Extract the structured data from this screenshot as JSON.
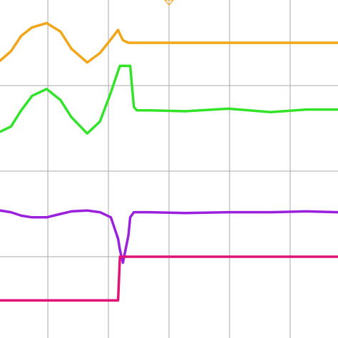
{
  "chart_data": {
    "type": "line",
    "grid": true,
    "x": [
      -2.79,
      -2.61,
      -2.44,
      -2.26,
      -2.02,
      -1.79,
      -1.61,
      -1.35,
      -1.14,
      -0.96,
      -0.84,
      -0.81,
      -0.76,
      -0.67,
      -0.64,
      -0.58,
      -0.53,
      -0.32,
      0.27,
      0.98,
      1.68,
      2.27,
      2.79
    ],
    "xlim": [
      -2.79,
      2.79
    ],
    "xticks": [
      -2,
      -1,
      0,
      1,
      2
    ],
    "ylim": [
      -1.95,
      2
    ],
    "yticks": [
      -1,
      0,
      1
    ],
    "series": [
      {
        "color": "#f2a516",
        "values": [
          1.29,
          1.4,
          1.58,
          1.68,
          1.73,
          1.63,
          1.43,
          1.27,
          1.38,
          1.54,
          1.65,
          1.6,
          1.53,
          1.5,
          1.5,
          1.5,
          1.5,
          1.5,
          1.5,
          1.5,
          1.5,
          1.5,
          1.5
        ]
      },
      {
        "color": "#33e32a",
        "values": [
          0.46,
          0.52,
          0.71,
          0.88,
          0.96,
          0.83,
          0.63,
          0.44,
          0.58,
          0.92,
          1.17,
          1.23,
          1.23,
          1.23,
          1.23,
          0.75,
          0.71,
          0.71,
          0.7,
          0.73,
          0.69,
          0.72,
          0.72
        ]
      },
      {
        "color": "#9b20dd",
        "values": [
          -0.46,
          -0.48,
          -0.52,
          -0.54,
          -0.54,
          -0.5,
          -0.47,
          -0.46,
          -0.48,
          -0.54,
          -0.79,
          -0.92,
          -1.07,
          -0.75,
          -0.54,
          -0.48,
          -0.48,
          -0.48,
          -0.49,
          -0.48,
          -0.48,
          -0.47,
          -0.48
        ]
      },
      {
        "color": "#e01478",
        "values": [
          -1.51,
          -1.51,
          -1.51,
          -1.51,
          -1.51,
          -1.51,
          -1.51,
          -1.51,
          -1.51,
          -1.51,
          -1.51,
          -1.0,
          -1.0,
          -1.0,
          -1.0,
          -1.0,
          -1.0,
          -1.0,
          -1.0,
          -1.0,
          -1.0,
          -1.0,
          -1.0
        ]
      }
    ]
  }
}
